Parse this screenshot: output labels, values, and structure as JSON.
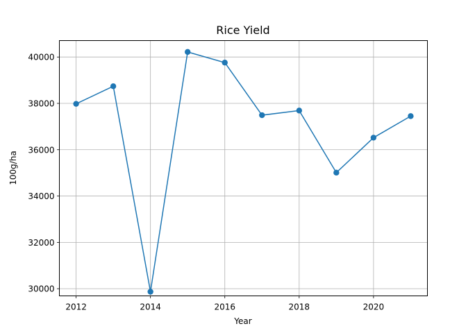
{
  "chart_data": {
    "type": "line",
    "title": "Rice Yield",
    "xlabel": "Year",
    "ylabel": "100g/ha",
    "xlim": [
      2011.55,
      2021.45
    ],
    "ylim": [
      29690,
      40710
    ],
    "xticks": [
      2012,
      2014,
      2016,
      2018,
      2020
    ],
    "yticks": [
      30000,
      32000,
      34000,
      36000,
      38000,
      40000
    ],
    "grid": true,
    "legend": "none",
    "color": "#1f77b4",
    "series": [
      {
        "x": [
          2012,
          2013,
          2014,
          2015,
          2016,
          2017,
          2018,
          2019,
          2020,
          2021
        ],
        "y": [
          37980,
          38740,
          29870,
          40220,
          39760,
          37490,
          37690,
          35010,
          36520,
          37450
        ]
      }
    ]
  }
}
